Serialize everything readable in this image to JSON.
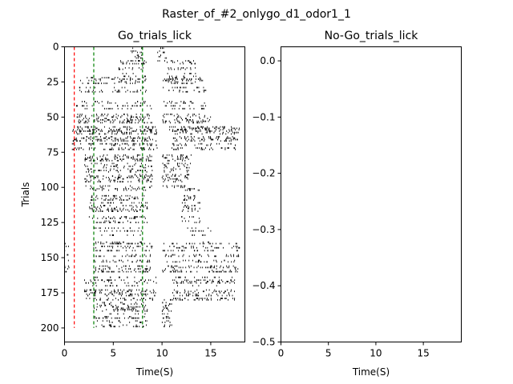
{
  "figure": {
    "suptitle": "Raster_of_#2_onlygo_d1_odor1_1"
  },
  "chart_data": [
    {
      "type": "scatter",
      "title": "Go_trials_lick",
      "xlabel": "Time(S)",
      "ylabel": "Trials",
      "xlim": [
        0,
        18.5
      ],
      "ylim": [
        210,
        0
      ],
      "y_inverted": true,
      "xticks": [
        0,
        5,
        10,
        15
      ],
      "xtick_labels": [
        "0",
        "5",
        "10",
        "15"
      ],
      "yticks": [
        0,
        25,
        50,
        75,
        100,
        125,
        150,
        175,
        200
      ],
      "ytick_labels": [
        "0",
        "25",
        "50",
        "75",
        "100",
        "125",
        "150",
        "175",
        "200"
      ],
      "grid": false,
      "marker": "|",
      "vlines": [
        {
          "x": 1,
          "color": "#ff0000",
          "style": "dashed",
          "ymin": 0,
          "ymax": 200
        },
        {
          "x": 3,
          "color": "#008000",
          "style": "dashed",
          "ymin": 0,
          "ymax": 200
        },
        {
          "x": 8,
          "color": "#008000",
          "style": "dashed",
          "ymin": 0,
          "ymax": 200
        }
      ],
      "lick_clusters": [
        {
          "trials": [
            1,
            10
          ],
          "times": [
            [
              6.8,
              8.0
            ],
            [
              9.5,
              10.5
            ]
          ]
        },
        {
          "trials": [
            10,
            25
          ],
          "times": [
            [
              5.5,
              8.5
            ],
            [
              10.5,
              13.5
            ]
          ]
        },
        {
          "trials": [
            20,
            40
          ],
          "times": [
            [
              1.5,
              8.5
            ],
            [
              10.0,
              14.5
            ]
          ]
        },
        {
          "trials": [
            40,
            60
          ],
          "times": [
            [
              1.2,
              9.0
            ],
            [
              10.0,
              15.0
            ]
          ]
        },
        {
          "trials": [
            55,
            75
          ],
          "times": [
            [
              0.8,
              9.5
            ],
            [
              11.0,
              18.0
            ]
          ]
        },
        {
          "trials": [
            75,
            100
          ],
          "times": [
            [
              2.0,
              9.0
            ],
            [
              10.0,
              13.0
            ]
          ]
        },
        {
          "trials": [
            100,
            125
          ],
          "times": [
            [
              2.5,
              8.5
            ],
            [
              12.0,
              14.0
            ]
          ]
        },
        {
          "trials": [
            125,
            140
          ],
          "times": [
            [
              3.0,
              8.0
            ],
            [
              12.5,
              15.0
            ]
          ]
        },
        {
          "trials": [
            140,
            160
          ],
          "times": [
            [
              0.0,
              0.5
            ],
            [
              3.0,
              9.0
            ],
            [
              10.0,
              18.0
            ]
          ]
        },
        {
          "trials": [
            160,
            180
          ],
          "times": [
            [
              2.0,
              9.5
            ],
            [
              11.0,
              17.5
            ]
          ]
        },
        {
          "trials": [
            180,
            200
          ],
          "times": [
            [
              3.0,
              8.5
            ],
            [
              10.0,
              11.0
            ]
          ]
        }
      ]
    },
    {
      "type": "scatter",
      "title": "No-Go_trials_lick",
      "xlabel": "Time(S)",
      "ylabel": "",
      "xlim": [
        0,
        19
      ],
      "ylim": [
        -0.5,
        0.025
      ],
      "xticks": [
        0,
        5,
        10,
        15
      ],
      "xtick_labels": [
        "0",
        "5",
        "10",
        "15"
      ],
      "yticks": [
        0.0,
        -0.1,
        -0.2,
        -0.3,
        -0.4,
        -0.5
      ],
      "ytick_labels": [
        "0.0",
        "−0.1",
        "−0.2",
        "−0.3",
        "−0.4",
        "−0.5"
      ],
      "grid": false,
      "points": []
    }
  ]
}
